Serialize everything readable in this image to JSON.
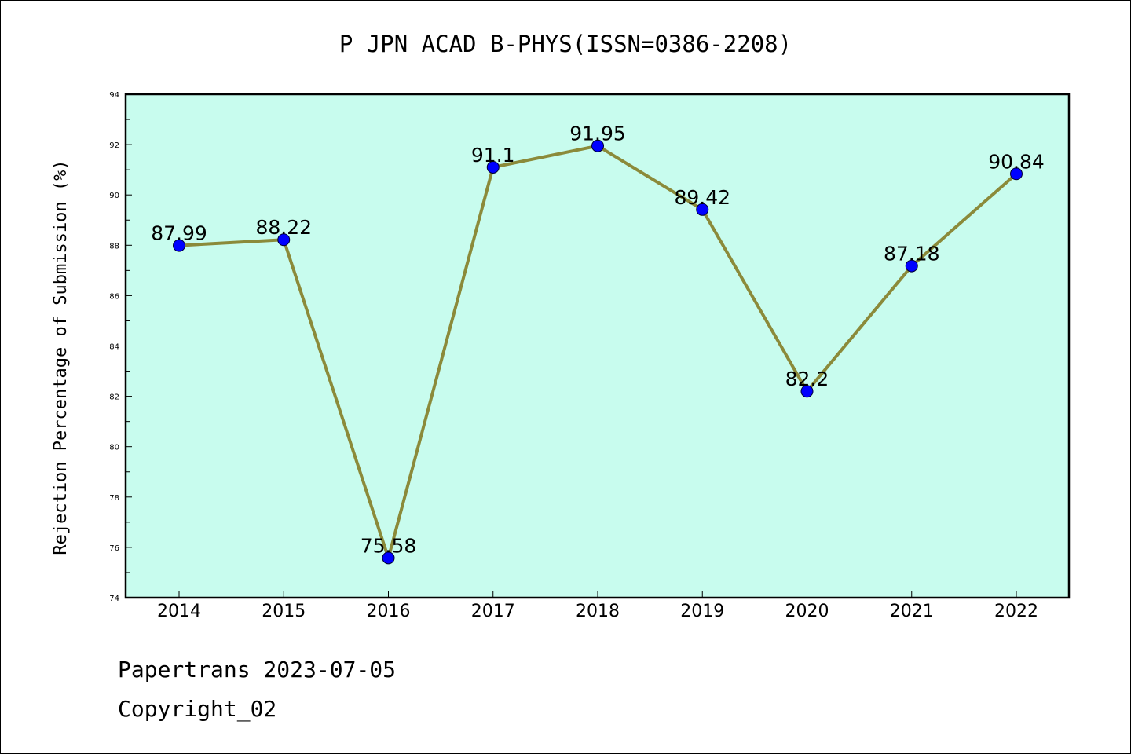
{
  "chart_data": {
    "type": "line",
    "title": "P JPN ACAD B-PHYS(ISSN=0386-2208)",
    "xlabel": "",
    "ylabel": "Rejection Percentage of Submission (%)",
    "categories": [
      "2014",
      "2015",
      "2016",
      "2017",
      "2018",
      "2019",
      "2020",
      "2021",
      "2022"
    ],
    "values": [
      87.99,
      88.22,
      75.58,
      91.1,
      91.95,
      89.42,
      82.2,
      87.18,
      90.84
    ],
    "value_labels": [
      "87.99",
      "88.22",
      "75.58",
      "91.1",
      "91.95",
      "89.42",
      "82.2",
      "87.18",
      "90.84"
    ],
    "ylim": [
      74,
      94
    ],
    "yticks": [
      74,
      76,
      78,
      80,
      82,
      84,
      86,
      88,
      90,
      92,
      94
    ],
    "grid": false,
    "colors": {
      "plot_background": "#c8fcee",
      "line": "#8b8a3a",
      "marker": "#0000ff"
    }
  },
  "footer": {
    "line1": "Papertrans 2023-07-05",
    "line2": "Copyright_02"
  }
}
